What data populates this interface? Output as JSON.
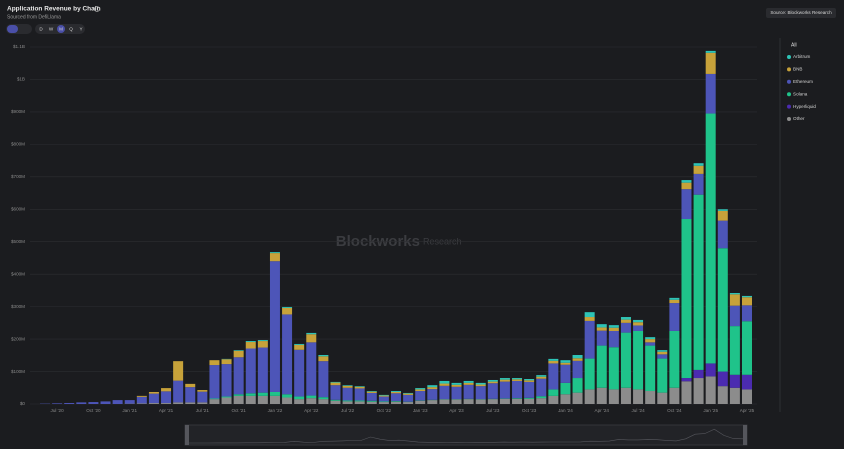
{
  "chart_data": {
    "type": "stacked-bar",
    "title": "Application Revenue by Chain",
    "subtitle": "Sourced from DefiLlama",
    "source": "Source: Blockworks Research",
    "watermark": [
      "Blockworks",
      "Research"
    ],
    "periods": [
      "D",
      "W",
      "M",
      "Q",
      "Y"
    ],
    "active_period": 2,
    "legend_all": "All",
    "grid": true,
    "categories": [
      null,
      "Jul '20",
      null,
      null,
      "Oct '20",
      null,
      null,
      "Jan '21",
      null,
      null,
      "Apr '21",
      null,
      null,
      "Jul '21",
      null,
      null,
      "Oct '21",
      null,
      null,
      "Jan '22",
      null,
      null,
      "Apr '22",
      null,
      null,
      "Jul '22",
      null,
      null,
      "Oct '22",
      null,
      null,
      "Jan '23",
      null,
      null,
      "Apr '23",
      null,
      null,
      "Jul '23",
      null,
      null,
      "Oct '23",
      null,
      null,
      "Jan '24",
      null,
      null,
      "Apr '24",
      null,
      null,
      "Jul '24",
      null,
      null,
      "Oct '24",
      null,
      null,
      "Jan '25",
      null,
      null,
      "Apr '25"
    ],
    "ylim": [
      0,
      1100
    ],
    "yticks": [
      {
        "value": 0,
        "label": "$0"
      },
      {
        "value": 100,
        "label": "$100M"
      },
      {
        "value": 200,
        "label": "$200M"
      },
      {
        "value": 300,
        "label": "$300M"
      },
      {
        "value": 400,
        "label": "$400M"
      },
      {
        "value": 500,
        "label": "$500M"
      },
      {
        "value": 600,
        "label": "$600M"
      },
      {
        "value": 700,
        "label": "$700M"
      },
      {
        "value": 800,
        "label": "$800M"
      },
      {
        "value": 900,
        "label": "$900M"
      },
      {
        "value": 1000,
        "label": "$1B"
      },
      {
        "value": 1100,
        "label": "$1.1B"
      }
    ],
    "series": [
      {
        "name": "Arbitrum",
        "color": "#2ec4b6",
        "values": [
          0,
          0,
          0,
          0,
          0,
          0,
          0,
          0,
          0,
          0,
          0,
          0,
          0,
          0,
          0,
          1,
          2,
          3,
          3,
          3,
          3,
          3,
          4,
          4,
          2,
          2,
          2,
          2,
          2,
          3,
          2,
          4,
          6,
          8,
          6,
          6,
          5,
          5,
          5,
          4,
          4,
          5,
          6,
          8,
          10,
          15,
          10,
          8,
          8,
          7,
          6,
          5,
          6,
          8,
          8,
          6,
          5,
          4,
          4
        ]
      },
      {
        "name": "BNB",
        "color": "#c7a23a",
        "values": [
          0,
          0,
          0,
          0,
          0,
          0,
          0,
          0,
          3,
          5,
          10,
          60,
          10,
          5,
          15,
          15,
          20,
          20,
          20,
          25,
          20,
          15,
          25,
          15,
          8,
          6,
          5,
          4,
          3,
          4,
          4,
          5,
          6,
          7,
          6,
          6,
          5,
          5,
          6,
          5,
          5,
          6,
          8,
          6,
          8,
          12,
          10,
          10,
          10,
          10,
          10,
          8,
          10,
          20,
          25,
          65,
          30,
          35,
          25
        ]
      },
      {
        "name": "Ethereum",
        "color": "#4d55b8",
        "values": [
          1,
          2,
          3,
          5,
          6,
          8,
          12,
          11,
          20,
          29,
          36,
          67,
          47,
          33,
          103,
          100,
          114,
          138,
          139,
          403,
          246,
          144,
          164,
          111,
          45,
          39,
          37,
          24,
          15,
          24,
          21,
          29,
          33,
          41,
          38,
          43,
          40,
          48,
          52,
          53,
          49,
          54,
          80,
          56,
          53,
          116,
          46,
          50,
          30,
          17,
          10,
          13,
          86,
          92,
          64,
          122,
          85,
          63,
          49
        ]
      },
      {
        "name": "Solana",
        "color": "#1fc38a",
        "values": [
          0,
          0,
          0,
          0,
          0,
          0,
          0,
          0,
          0,
          0,
          0,
          0,
          0,
          0,
          2,
          3,
          5,
          8,
          10,
          12,
          10,
          8,
          8,
          6,
          3,
          3,
          3,
          3,
          2,
          2,
          1,
          1,
          1,
          1,
          1,
          1,
          1,
          1,
          1,
          2,
          3,
          6,
          20,
          35,
          45,
          95,
          130,
          130,
          170,
          180,
          140,
          105,
          175,
          490,
          540,
          770,
          380,
          150,
          165
        ]
      },
      {
        "name": "Hyperliquid",
        "color": "#4b2bb0",
        "values": [
          0,
          0,
          0,
          0,
          0,
          0,
          0,
          0,
          0,
          0,
          0,
          0,
          0,
          0,
          0,
          0,
          0,
          0,
          0,
          0,
          0,
          0,
          0,
          0,
          0,
          0,
          0,
          0,
          0,
          0,
          0,
          0,
          0,
          0,
          0,
          0,
          0,
          0,
          0,
          0,
          0,
          0,
          0,
          0,
          0,
          0,
          0,
          0,
          0,
          0,
          0,
          0,
          0,
          10,
          25,
          40,
          45,
          40,
          45
        ]
      },
      {
        "name": "Other",
        "color": "#8c8c8c",
        "values": [
          0,
          0,
          0,
          0,
          0,
          0,
          0,
          1,
          2,
          3,
          3,
          5,
          5,
          5,
          15,
          20,
          25,
          25,
          25,
          25,
          20,
          15,
          18,
          15,
          10,
          8,
          8,
          7,
          6,
          7,
          6,
          10,
          12,
          14,
          14,
          15,
          14,
          15,
          16,
          16,
          16,
          18,
          25,
          30,
          35,
          45,
          50,
          45,
          50,
          45,
          40,
          35,
          50,
          70,
          80,
          85,
          55,
          50,
          45
        ]
      }
    ]
  }
}
